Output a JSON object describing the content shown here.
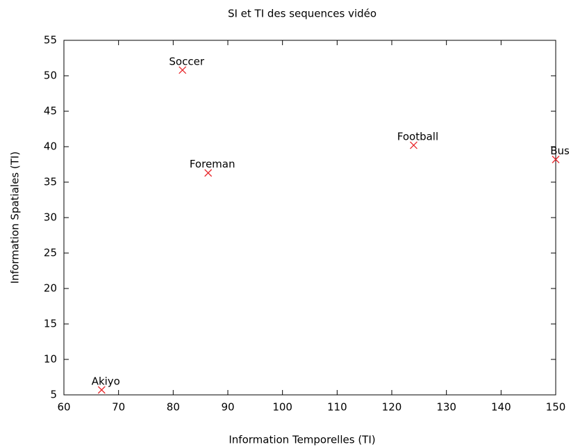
{
  "chart_data": {
    "type": "scatter",
    "title": "SI et TI des sequences vidéo",
    "xlabel": "Information Temporelles (TI)",
    "ylabel": "Information Spatiales (TI)",
    "labels": [
      "Soccer",
      "Foreman",
      "Football",
      "Bus",
      "Akiyo"
    ],
    "x": [
      81.7,
      86.4,
      124.0,
      150.0,
      66.9
    ],
    "y": [
      50.8,
      36.3,
      40.2,
      38.2,
      5.7
    ],
    "color": "#e8262a",
    "marker": "x",
    "xlim": [
      60,
      150
    ],
    "xticks": [
      60,
      70,
      80,
      90,
      100,
      110,
      120,
      130,
      140,
      150
    ],
    "ylim": [
      5,
      55
    ],
    "yticks": [
      5,
      10,
      15,
      20,
      25,
      30,
      35,
      40,
      45,
      50,
      55
    ],
    "grid": false
  }
}
